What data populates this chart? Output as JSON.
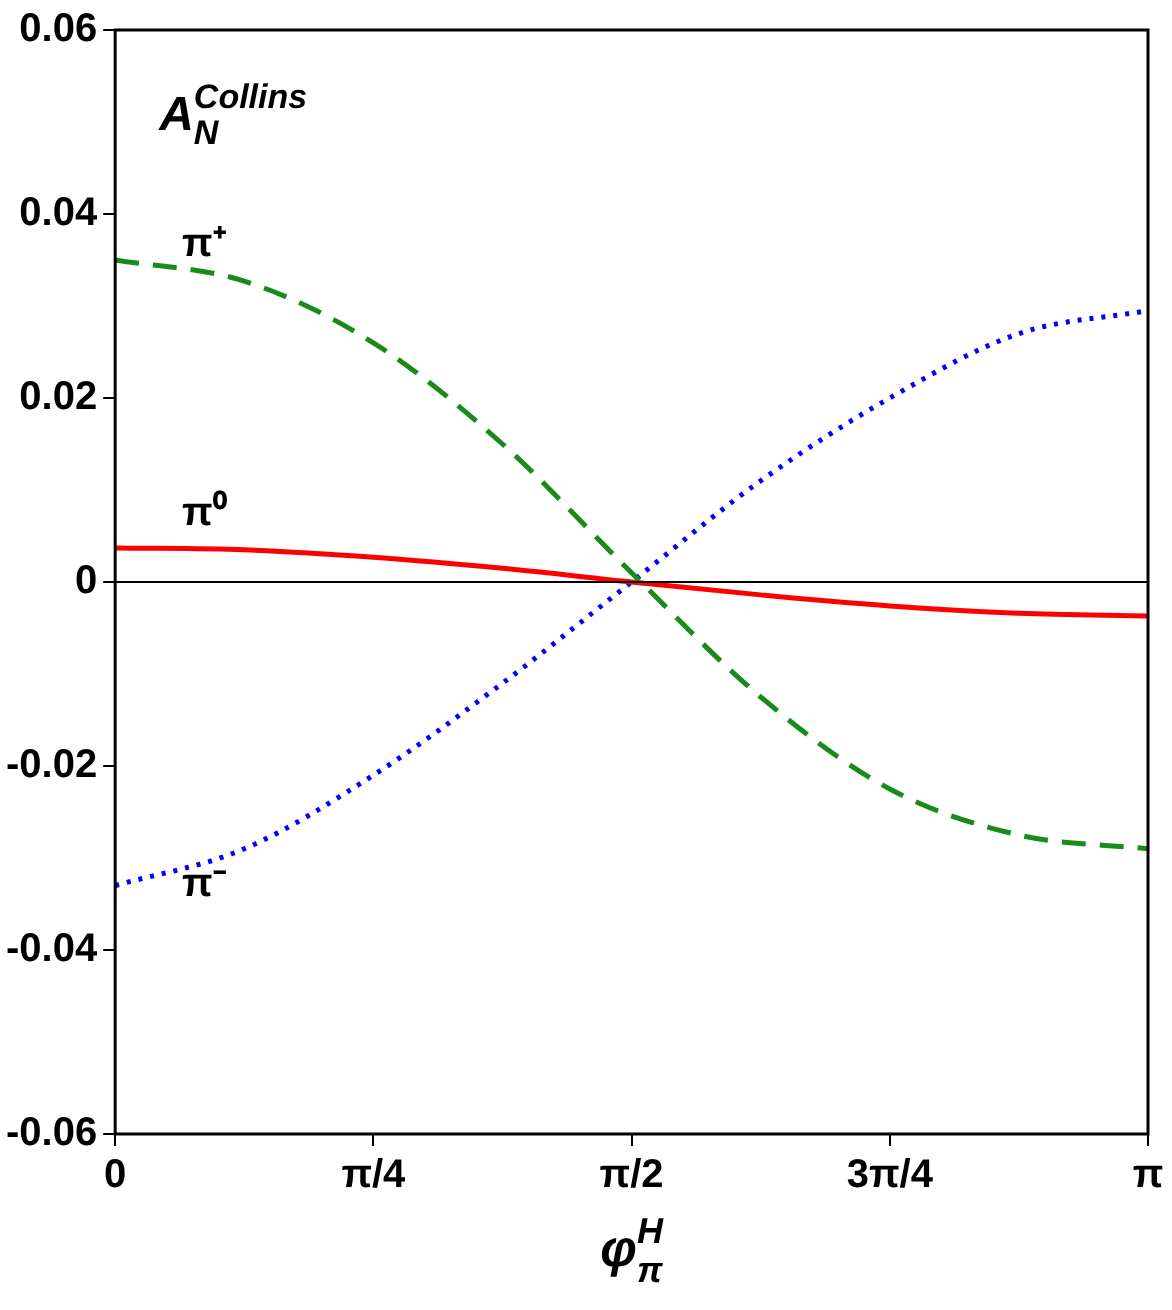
{
  "chart_data": {
    "type": "line",
    "xlabel": "φ$_{π}$$^{H}$",
    "ylabel": "A$_{N}$$^{Collins}$",
    "xlim": [
      0,
      3.14159
    ],
    "xticks": [
      0,
      {
        "value": 0.7854,
        "label": "π/4"
      },
      {
        "value": 1.5708,
        "label": "π/2"
      },
      {
        "value": 2.3562,
        "label": "3π/4"
      },
      {
        "value": 3.14159,
        "label": "π"
      }
    ],
    "ylim": [
      -0.06,
      0.06
    ],
    "yticks": [
      -0.06,
      -0.04,
      -0.02,
      0,
      0.02,
      0.04,
      0.06
    ],
    "grid": false,
    "legend": false,
    "marker": "none",
    "x": [
      0,
      0.3927,
      0.7854,
      1.1781,
      1.5708,
      1.9635,
      2.3562,
      2.7489,
      3.14159
    ],
    "series": [
      {
        "name": "π⁺",
        "color": "#1a8a1a",
        "line_style": "dashed",
        "values": [
          0.035,
          0.0327,
          0.026,
          0.015,
          0.001,
          -0.0125,
          -0.0225,
          -0.0275,
          -0.029
        ]
      },
      {
        "name": "π⁰",
        "color": "#ff0000",
        "line_style": "solid",
        "values": [
          0.0037,
          0.0035,
          0.0027,
          0.0015,
          0,
          -0.0014,
          -0.0026,
          -0.0034,
          -0.0037
        ]
      },
      {
        "name": "π⁻",
        "color": "#0000ff",
        "line_style": "dotted",
        "values": [
          -0.033,
          -0.029,
          -0.021,
          -0.011,
          0,
          0.011,
          0.02,
          0.027,
          0.0295
        ]
      }
    ],
    "ref_lines": [
      {
        "axis": "y",
        "value": 0,
        "color": "#000000"
      }
    ]
  }
}
